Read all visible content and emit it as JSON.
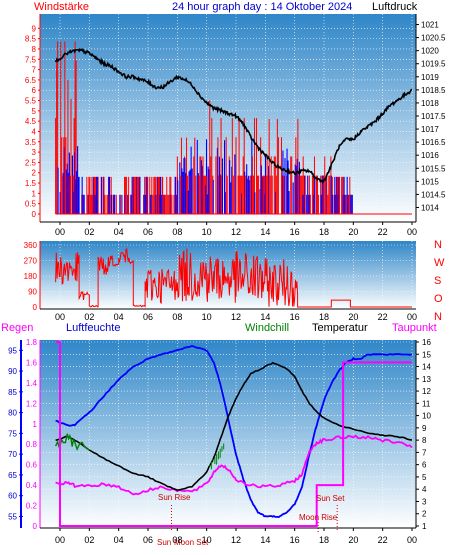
{
  "header": {
    "left_label": "Windstärke",
    "title": "24 hour graph day : 14 Oktober 2024",
    "right_label": "Luftdruck"
  },
  "colors": {
    "wind_speed": "#ff0000",
    "wind_gust_bars": "#0000ff",
    "pressure": "#000000",
    "humidity": "#0000ff",
    "temperature": "#000000",
    "dewpoint": "#ff00ff",
    "windchill": "#008000",
    "rain": "#ff00ff",
    "gradient_top": "#2f86c8",
    "gradient_bottom": "#ffffff"
  },
  "x_ticks": [
    "00",
    "02",
    "04",
    "06",
    "08",
    "10",
    "12",
    "14",
    "16",
    "18",
    "20",
    "22",
    "00"
  ],
  "chart_data": [
    {
      "type": "bar",
      "name_left": "Windstärke",
      "name_right": "Luftdruck",
      "x_range": [
        0,
        24
      ],
      "y_left_ticks": [
        "9",
        "8.5",
        "8",
        "7.5",
        "7",
        "6.5",
        "6",
        "5.5",
        "5",
        "4.5",
        "4",
        "3.5",
        "3",
        "2.5",
        "2",
        "1.5",
        "1",
        "0.5",
        "0"
      ],
      "y_left_range": [
        0,
        9.5
      ],
      "y_right_ticks": [
        "1021",
        "1020.5",
        "1020",
        "1019.5",
        "1019",
        "1018.5",
        "1018",
        "1017.5",
        "1017",
        "1016.5",
        "1016",
        "1015.5",
        "1015",
        "1014.5",
        "1014"
      ],
      "y_right_range": [
        1013.7,
        1021.3
      ],
      "pressure": {
        "x": [
          -0.3,
          0.5,
          1.0,
          1.5,
          2.0,
          2.5,
          3.0,
          3.5,
          4.0,
          4.5,
          5.0,
          5.5,
          6.0,
          6.5,
          7.0,
          7.5,
          8.0,
          8.5,
          9.0,
          9.5,
          10.0,
          10.5,
          11.0,
          11.5,
          12.0,
          12.5,
          13.0,
          13.5,
          14.0,
          14.5,
          15.0,
          15.5,
          16.0,
          16.5,
          17.0,
          17.5,
          18.0,
          18.5,
          19.0,
          19.5,
          20.0,
          20.5,
          21.0,
          21.5,
          22.0,
          22.5,
          23.0,
          23.5,
          24.0
        ],
        "y": [
          1019.6,
          1019.9,
          1020.0,
          1020.0,
          1019.9,
          1019.7,
          1019.5,
          1019.4,
          1019.2,
          1019.0,
          1019.0,
          1018.9,
          1018.8,
          1018.6,
          1018.6,
          1018.8,
          1019.0,
          1018.9,
          1018.7,
          1018.3,
          1018.0,
          1017.8,
          1017.7,
          1017.6,
          1017.5,
          1017.2,
          1016.7,
          1016.3,
          1016.0,
          1015.7,
          1015.5,
          1015.4,
          1015.3,
          1015.4,
          1015.4,
          1015.1,
          1015.0,
          1015.6,
          1016.3,
          1016.6,
          1016.6,
          1016.9,
          1017.1,
          1017.3,
          1017.6,
          1017.9,
          1018.1,
          1018.3,
          1018.5
        ]
      },
      "wind_bands": [
        {
          "from": -0.3,
          "to": 1.2,
          "max": 9.0
        },
        {
          "from": 1.2,
          "to": 3.0,
          "max": 1.8
        },
        {
          "from": 3.0,
          "to": 5.0,
          "max": 1.8
        },
        {
          "from": 5.0,
          "to": 7.0,
          "max": 1.8
        },
        {
          "from": 7.0,
          "to": 8.0,
          "max": 1.8
        },
        {
          "from": 8.0,
          "to": 10.0,
          "max": 3.7
        },
        {
          "from": 10.0,
          "to": 12.0,
          "max": 5.5
        },
        {
          "from": 12.0,
          "to": 13.7,
          "max": 5.5
        },
        {
          "from": 13.7,
          "to": 16.3,
          "max": 4.6
        },
        {
          "from": 16.3,
          "to": 18.5,
          "max": 2.8
        },
        {
          "from": 18.5,
          "to": 20.0,
          "max": 1.8
        },
        {
          "from": 20.0,
          "to": 24.0,
          "max": 0.0
        }
      ]
    },
    {
      "type": "line",
      "name_right": [
        "N",
        "W",
        "S",
        "O",
        "N"
      ],
      "x_range": [
        0,
        24
      ],
      "y_ticks": [
        "360",
        "270",
        "180",
        "90",
        "0"
      ],
      "y_range": [
        0,
        360
      ],
      "segments": [
        {
          "from": -0.3,
          "to": 1.3,
          "level_lo": 120,
          "level_hi": 320
        },
        {
          "from": 1.3,
          "to": 2.0,
          "level_lo": 40,
          "level_hi": 90
        },
        {
          "from": 2.0,
          "to": 2.6,
          "level_lo": 0,
          "level_hi": 10
        },
        {
          "from": 2.6,
          "to": 3.6,
          "level_lo": 180,
          "level_hi": 300
        },
        {
          "from": 3.6,
          "to": 4.0,
          "level_lo": 240,
          "level_hi": 250
        },
        {
          "from": 4.0,
          "to": 5.0,
          "level_lo": 250,
          "level_hi": 340
        },
        {
          "from": 5.0,
          "to": 5.8,
          "level_lo": 0,
          "level_hi": 10
        },
        {
          "from": 5.8,
          "to": 7.8,
          "level_lo": 20,
          "level_hi": 240
        },
        {
          "from": 7.8,
          "to": 10.0,
          "level_lo": 30,
          "level_hi": 340
        },
        {
          "from": 10.0,
          "to": 12.0,
          "level_lo": 20,
          "level_hi": 320
        },
        {
          "from": 12.0,
          "to": 14.0,
          "level_lo": 0,
          "level_hi": 330
        },
        {
          "from": 14.0,
          "to": 16.2,
          "level_lo": 0,
          "level_hi": 280
        },
        {
          "from": 16.2,
          "to": 18.5,
          "level_lo": 0,
          "level_hi": 0
        },
        {
          "from": 18.5,
          "to": 19.8,
          "level_lo": 40,
          "level_hi": 40
        },
        {
          "from": 19.8,
          "to": 24.0,
          "level_lo": 0,
          "level_hi": 0
        }
      ]
    },
    {
      "type": "line",
      "labels": {
        "rain": "Regen",
        "humidity": "Luftfeuchte",
        "windchill": "Windchill",
        "temperature": "Temperatur",
        "dewpoint": "Taupunkt"
      },
      "x_range": [
        0,
        24
      ],
      "rain_ticks": [
        "1.8",
        "1.6",
        "1.4",
        "1.2",
        "1",
        "0.8",
        "0.6",
        "0.4",
        "0.2",
        "0"
      ],
      "rain_range": [
        0,
        1.8
      ],
      "humidity_ticks": [
        "95",
        "90",
        "85",
        "80",
        "75",
        "70",
        "65",
        "60",
        "55"
      ],
      "humidity_range": [
        52.7,
        97.0
      ],
      "temp_ticks": [
        "16",
        "15",
        "14",
        "13",
        "12",
        "11",
        "10",
        "9",
        "8",
        "7",
        "6",
        "5",
        "4",
        "3",
        "2",
        "1"
      ],
      "temp_range": [
        1,
        16
      ],
      "humidity": {
        "x": [
          -0.3,
          0.5,
          1.0,
          2.0,
          3.0,
          4.0,
          5.0,
          6.0,
          7.0,
          8.0,
          9.0,
          10.0,
          10.5,
          11.0,
          11.5,
          12.0,
          12.5,
          13.0,
          13.5,
          14.0,
          14.5,
          15.0,
          15.5,
          16.0,
          16.5,
          17.0,
          17.5,
          18.0,
          18.5,
          19.0,
          19.5,
          20.0,
          20.5,
          21.0,
          22.0,
          23.0,
          24.0
        ],
        "y": [
          78,
          77,
          77,
          80,
          84,
          88,
          91,
          93,
          94,
          95,
          96,
          95,
          92,
          86,
          78,
          70,
          64,
          59,
          56,
          55,
          55,
          55,
          56,
          58,
          62,
          70,
          77,
          83,
          87,
          90,
          92,
          93,
          93,
          94,
          94,
          94,
          94
        ]
      },
      "temperature": {
        "x": [
          -0.3,
          0.5,
          1.0,
          2.0,
          3.0,
          4.0,
          5.0,
          6.0,
          7.0,
          8.0,
          9.0,
          10.0,
          10.5,
          11.0,
          11.5,
          12.0,
          12.5,
          13.0,
          14.0,
          14.5,
          15.0,
          15.5,
          16.0,
          16.5,
          17.0,
          17.5,
          18.0,
          19.0,
          20.0,
          21.0,
          22.0,
          23.0,
          24.0
        ],
        "y": [
          8.0,
          8.3,
          8.0,
          7.2,
          6.5,
          5.9,
          5.3,
          5.0,
          4.4,
          3.9,
          4.2,
          5.4,
          6.6,
          8.3,
          10.0,
          11.4,
          12.5,
          13.4,
          14.0,
          14.3,
          14.1,
          13.8,
          13.2,
          12.0,
          11.0,
          10.3,
          9.8,
          9.2,
          8.9,
          8.6,
          8.4,
          8.3,
          8.0
        ]
      },
      "windchill": {
        "x": [
          -0.3,
          0.5,
          1.0,
          2.0
        ],
        "y": [
          7.5,
          8.1,
          7.8,
          7.2
        ]
      },
      "dewpoint": {
        "x": [
          -0.3,
          0.5,
          1.0,
          2.0,
          3.0,
          4.0,
          5.0,
          6.0,
          7.0,
          8.0,
          9.0,
          10.0,
          10.5,
          11.0,
          11.5,
          12.0,
          13.0,
          14.0,
          15.0,
          16.0,
          16.5,
          17.0,
          17.5,
          18.0,
          19.0,
          20.0,
          21.0,
          22.0,
          23.0,
          24.0
        ],
        "y": [
          4.5,
          4.5,
          4.3,
          4.3,
          4.4,
          4.2,
          3.6,
          3.9,
          4.2,
          3.9,
          3.8,
          4.4,
          5.4,
          6.0,
          5.6,
          4.8,
          4.3,
          4.2,
          4.3,
          4.7,
          5.2,
          7.1,
          7.8,
          8.0,
          8.2,
          8.3,
          8.2,
          8.0,
          7.8,
          7.4
        ]
      },
      "rain_steps": {
        "x": [
          -0.3,
          0.0,
          0.0,
          17.5,
          17.5,
          19.3,
          19.3,
          24.0
        ],
        "y": [
          1.8,
          1.8,
          0.0,
          0.0,
          0.4,
          0.4,
          1.6,
          1.6
        ]
      },
      "annotations": {
        "sunrise": {
          "label": "Sun Rise",
          "x": 7.6
        },
        "sunset": {
          "label": "Sun Set",
          "x": 18.9
        },
        "moonrise": {
          "label": "Moon Rise",
          "x": 17.6
        },
        "moonset": {
          "label": "Moon Set",
          "x": 6.8
        },
        "sun_marker": {
          "label": "Sun",
          "x": 7.0
        }
      }
    }
  ]
}
